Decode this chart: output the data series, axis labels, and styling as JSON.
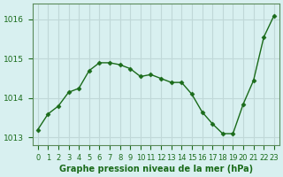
{
  "x": [
    0,
    1,
    2,
    3,
    4,
    5,
    6,
    7,
    8,
    9,
    10,
    11,
    12,
    13,
    14,
    15,
    16,
    17,
    18,
    19,
    20,
    21,
    22,
    23
  ],
  "y": [
    1013.2,
    1013.6,
    1013.8,
    1014.15,
    1014.25,
    1014.7,
    1014.9,
    1014.9,
    1014.85,
    1014.75,
    1014.55,
    1014.6,
    1014.5,
    1014.4,
    1014.4,
    1014.1,
    1013.65,
    1013.35,
    1013.1,
    1013.1,
    1013.85,
    1014.45,
    1015.55,
    1016.1
  ],
  "line_color": "#1a6b1a",
  "marker_color": "#1a6b1a",
  "bg_color": "#d8f0f0",
  "grid_color": "#c0d8d8",
  "ylabel_color": "#1a6b1a",
  "xlabel_color": "#1a6b1a",
  "tick_color": "#1a6b1a",
  "axis_color": "#5a8a5a",
  "ylim_min": 1012.8,
  "ylim_max": 1016.4,
  "yticks": [
    1013,
    1014,
    1015,
    1016
  ],
  "xlabel": "Graphe pression niveau de la mer (hPa)",
  "title_fontsize": 7,
  "axis_fontsize": 7,
  "tick_fontsize": 6.5
}
